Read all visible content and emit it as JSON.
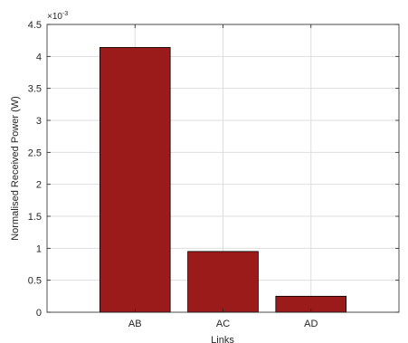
{
  "chart_data": {
    "type": "bar",
    "categories": [
      "AB",
      "AC",
      "AD"
    ],
    "values": [
      0.00414,
      0.00095,
      0.00025
    ],
    "xlabel": "Links",
    "ylabel": "Normalised Received Power (W)",
    "ylim": [
      0,
      0.0045
    ],
    "xlim": [
      0,
      4
    ],
    "yticks": [
      0,
      0.5,
      1,
      1.5,
      2,
      2.5,
      3,
      3.5,
      4,
      4.5
    ],
    "ytick_labels": [
      "0",
      "0.5",
      "1",
      "1.5",
      "2",
      "2.5",
      "3",
      "3.5",
      "4",
      "4.5"
    ],
    "y_exponent_label": "×10",
    "y_exponent_power": "-3",
    "y_exponent_scale": 0.001,
    "grid": true,
    "bar_color": "#9b1a1a",
    "bar_edge_color": "#000000",
    "grid_color": "#dedede"
  }
}
